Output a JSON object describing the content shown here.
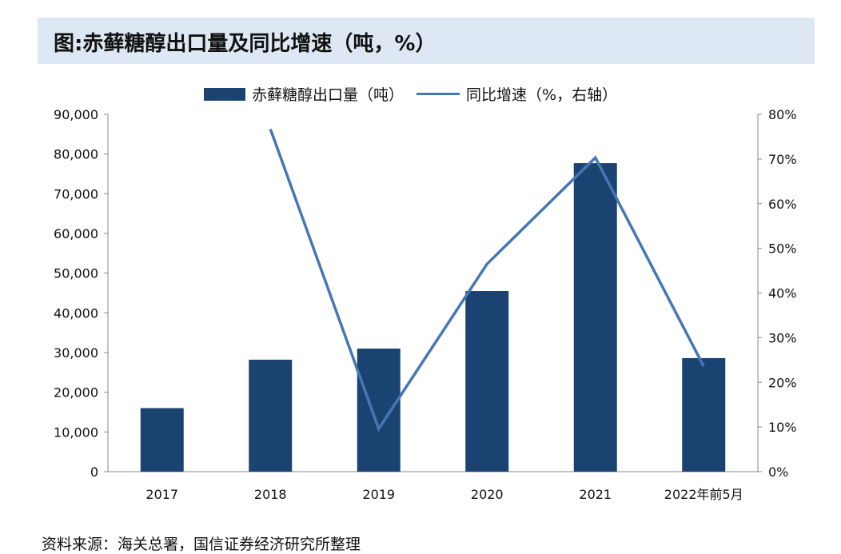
{
  "title": "图:赤藓糖醇出口量及同比增速（吨，%）",
  "source": "资料来源：海关总署，国信证券经济研究所整理",
  "chart_data": {
    "type": "bar+line",
    "title": "图:赤藓糖醇出口量及同比增速（吨，%）",
    "categories": [
      "2017",
      "2018",
      "2019",
      "2020",
      "2021",
      "2022年前5月"
    ],
    "series": [
      {
        "name": "赤藓糖醇出口量（吨）",
        "type": "bar",
        "axis": "left",
        "color": "#1b4372",
        "values": [
          16000,
          28200,
          31000,
          45500,
          77700,
          28600
        ]
      },
      {
        "name": "同比增速（%，右轴）",
        "type": "line",
        "axis": "right",
        "color": "#4577b5",
        "values": [
          null,
          76.7,
          9.6,
          46.5,
          70.3,
          23.6
        ]
      }
    ],
    "left_axis": {
      "range": [
        0,
        90000
      ],
      "ticks": [
        "0",
        "10,000",
        "20,000",
        "30,000",
        "40,000",
        "50,000",
        "60,000",
        "70,000",
        "80,000",
        "90,000"
      ]
    },
    "right_axis": {
      "range": [
        0,
        80
      ],
      "ticks": [
        "0%",
        "10%",
        "20%",
        "30%",
        "40%",
        "50%",
        "60%",
        "70%",
        "80%"
      ]
    },
    "legend": "top",
    "grid": false
  }
}
